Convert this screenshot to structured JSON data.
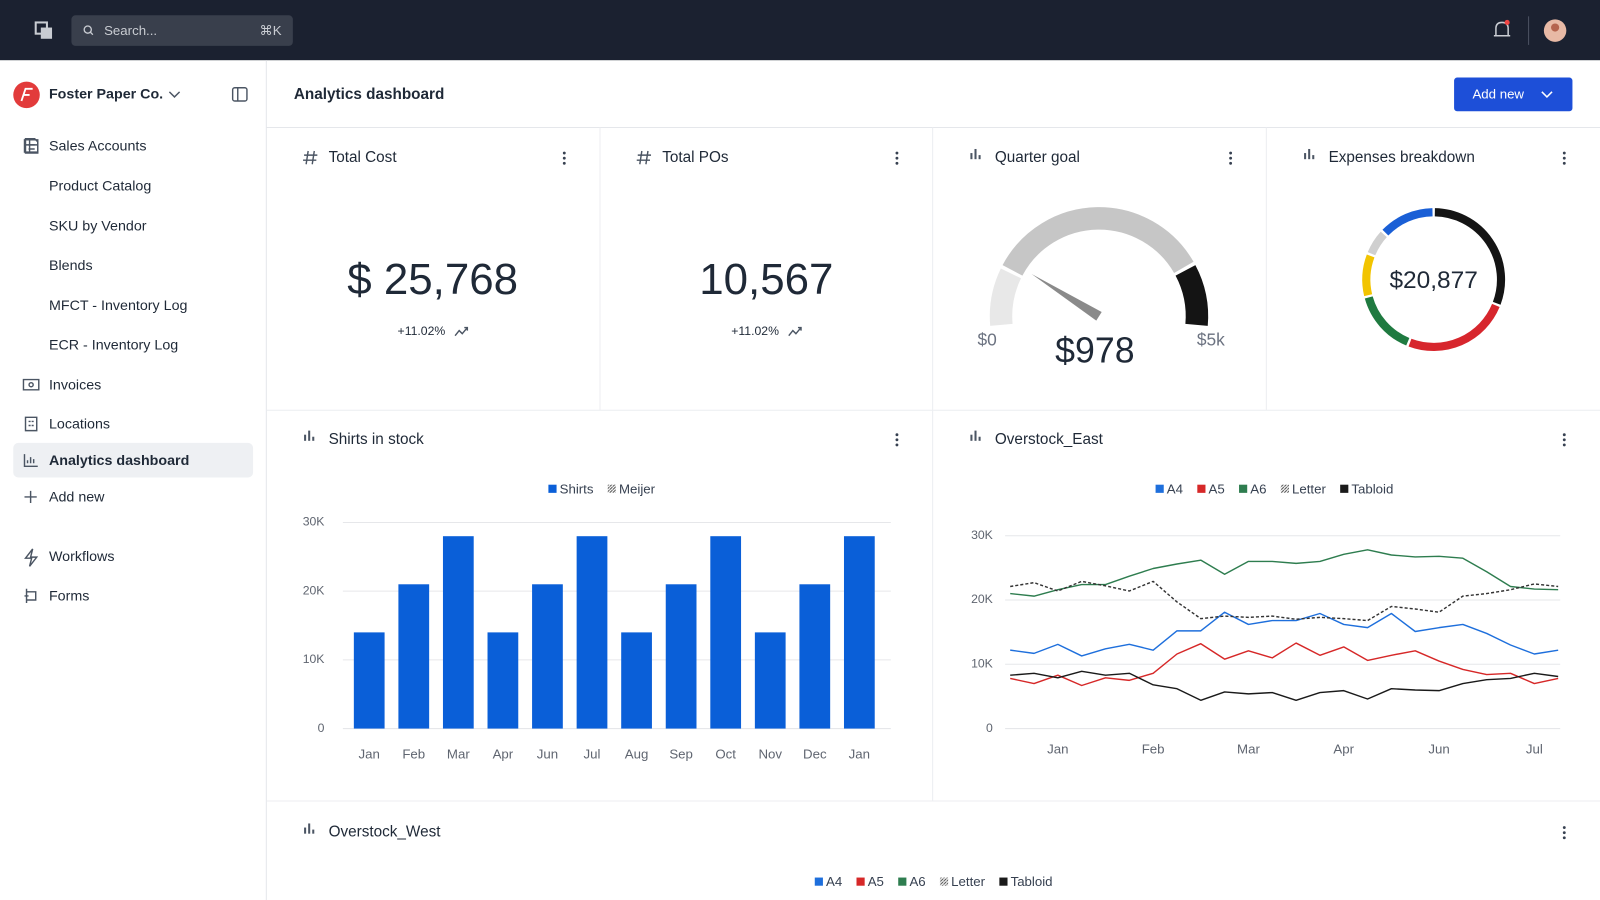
{
  "topbar": {
    "search": "Search...",
    "shortcut": "⌘K"
  },
  "sidebar": {
    "org": "Foster Paper Co.",
    "items": [
      "Sales Accounts",
      "Product Catalog",
      "SKU by Vendor",
      "Blends",
      "MFCT - Inventory Log",
      "ECR - Inventory Log",
      "Invoices",
      "Locations",
      "Analytics dashboard",
      "Add new",
      "Workflows",
      "Forms"
    ]
  },
  "header": {
    "title": "Analytics dashboard",
    "button": "Add new"
  },
  "cards": [
    {
      "title": "Total Cost",
      "value": "$ 25,768",
      "change": "+11.02%"
    },
    {
      "title": "Total POs",
      "value": "10,567",
      "change": "+11.02%"
    }
  ],
  "chart_data": [
    {
      "type": "gauge",
      "title": "Quarter goal",
      "values": [
        978
      ],
      "value_labels": [
        "$978"
      ],
      "ylim": [
        0,
        5000
      ],
      "yticks": [
        {
          "value": 0,
          "label": "$0"
        },
        {
          "value": 5000,
          "label": "$5k"
        }
      ]
    },
    {
      "type": "donut",
      "title": "Expenses breakdown",
      "center_label": "$20,877",
      "values": [
        31,
        25,
        15,
        10,
        6,
        13
      ],
      "colors": [
        "#141414",
        "#d7262d",
        "#1f7a40",
        "#f2c400",
        "#cfcfcf",
        "#1a5fd6"
      ]
    },
    {
      "type": "bar",
      "title": "Shirts in stock",
      "categories": [
        "Jan",
        "Feb",
        "Mar",
        "Apr",
        "Jun",
        "Jul",
        "Aug",
        "Sep",
        "Oct",
        "Nov",
        "Dec",
        "Jan"
      ],
      "series": [
        {
          "name": "Shirts",
          "color": "#0a5fd8",
          "values": [
            14000,
            21000,
            28000,
            14000,
            21000,
            28000,
            14000,
            21000,
            28000,
            14000,
            21000,
            28000
          ]
        },
        {
          "name": "Meijer",
          "color": "#555555",
          "dashed": true,
          "values": [
            null,
            null,
            null,
            null,
            null,
            null,
            null,
            null,
            null,
            null,
            null,
            null
          ]
        }
      ],
      "ylim": [
        0,
        30000
      ],
      "yticks": [
        0,
        {
          "value": 10000,
          "label": "10K"
        },
        {
          "value": 20000,
          "label": "20K"
        },
        {
          "value": 30000,
          "label": "30K"
        }
      ],
      "grid": true
    },
    {
      "type": "line",
      "title": "Overstock_East",
      "categories": [
        null,
        null,
        "Jan",
        null,
        null,
        null,
        "Feb",
        null,
        null,
        null,
        "Mar",
        null,
        null,
        null,
        "Apr",
        null,
        null,
        null,
        "Jun",
        null,
        null,
        null,
        "Jul",
        null
      ],
      "series": [
        {
          "name": "A4",
          "color": "#1e6fdc",
          "values": [
            12200,
            11700,
            13100,
            11300,
            12400,
            13100,
            12200,
            15200,
            15200,
            18100,
            16200,
            16800,
            16800,
            17900,
            16200,
            15700,
            17900,
            15100,
            15700,
            16200,
            14800,
            13000,
            11600,
            12200
          ]
        },
        {
          "name": "A5",
          "color": "#d62828",
          "values": [
            7800,
            7000,
            8300,
            6700,
            7900,
            7500,
            8600,
            11600,
            13200,
            10800,
            12100,
            11000,
            13300,
            11400,
            12700,
            10600,
            11400,
            12100,
            10500,
            9200,
            8400,
            8600,
            7000,
            7800
          ]
        },
        {
          "name": "A6",
          "color": "#2e7d4f",
          "values": [
            21000,
            20600,
            21600,
            22400,
            22400,
            23700,
            24900,
            25600,
            26200,
            24000,
            26000,
            26000,
            25700,
            26000,
            27100,
            27800,
            27000,
            26700,
            26800,
            26500,
            24400,
            22100,
            21700,
            21600
          ]
        },
        {
          "name": "Letter",
          "color": "#333333",
          "dashed": true,
          "values": [
            22100,
            22700,
            21400,
            22900,
            22200,
            21400,
            22900,
            19700,
            17100,
            17500,
            17300,
            17500,
            17000,
            17300,
            17100,
            16800,
            19000,
            18600,
            18100,
            20600,
            21000,
            21600,
            22500,
            22100
          ]
        },
        {
          "name": "Tabloid",
          "color": "#1a1a1a",
          "values": [
            8300,
            8600,
            7900,
            8900,
            8300,
            8600,
            6800,
            6200,
            4400,
            5700,
            5400,
            5600,
            4400,
            5600,
            5900,
            4600,
            6200,
            6000,
            5900,
            7000,
            7600,
            7800,
            8600,
            8100
          ]
        }
      ],
      "ylim": [
        0,
        30000
      ],
      "yticks": [
        0,
        {
          "value": 10000,
          "label": "10K"
        },
        {
          "value": 20000,
          "label": "20K"
        },
        {
          "value": 30000,
          "label": "30K"
        }
      ],
      "grid": true
    },
    {
      "type": "line",
      "title": "Overstock_West",
      "series": [
        {
          "name": "A4",
          "color": "#1e6fdc"
        },
        {
          "name": "A5",
          "color": "#d62828"
        },
        {
          "name": "A6",
          "color": "#2e7d4f"
        },
        {
          "name": "Letter",
          "color": "#333333",
          "dashed": true
        },
        {
          "name": "Tabloid",
          "color": "#1a1a1a"
        }
      ]
    }
  ]
}
